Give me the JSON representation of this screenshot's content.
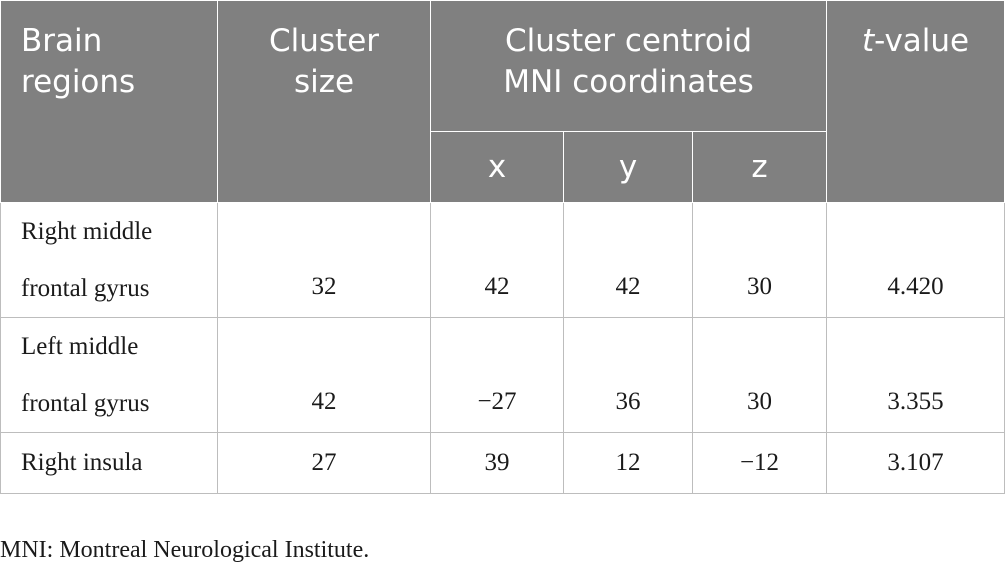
{
  "table": {
    "headers": {
      "brain_regions_line1": "Brain",
      "brain_regions_line2": "regions",
      "cluster_size_line1": "Cluster",
      "cluster_size_line2": "size",
      "centroid_line1": "Cluster centroid",
      "centroid_line2": "MNI coordinates",
      "x": "x",
      "y": "y",
      "z": "z",
      "t_value_italic": "t",
      "t_value_rest": "-value"
    },
    "rows": [
      {
        "region_line1": "Right middle",
        "region_line2": "frontal gyrus",
        "cluster_size": "32",
        "x": "42",
        "y": "42",
        "z": "30",
        "t_value": "4.420"
      },
      {
        "region_line1": "Left middle",
        "region_line2": "frontal gyrus",
        "cluster_size": "42",
        "x": "−27",
        "y": "36",
        "z": "30",
        "t_value": "3.355"
      },
      {
        "region_line1": "Right insula",
        "cluster_size": "27",
        "x": "39",
        "y": "12",
        "z": "−12",
        "t_value": "3.107"
      }
    ]
  },
  "footnote": "MNI: Montreal Neurological Institute."
}
